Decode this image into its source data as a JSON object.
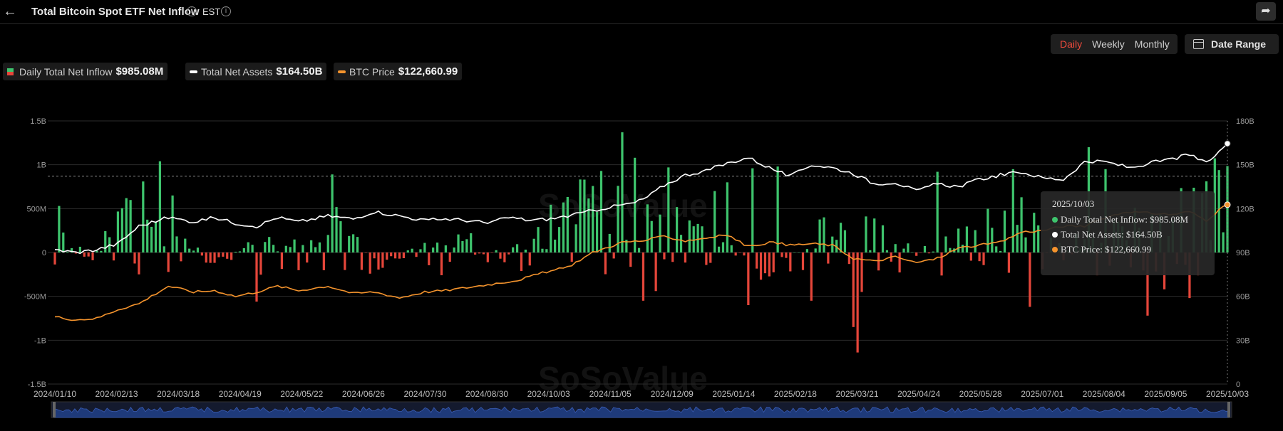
{
  "header": {
    "title": "Total Bitcoin Spot ETF Net Inflow",
    "timezone": "EST",
    "back_icon": "arrow-left-icon",
    "share_icon": "share-icon",
    "info_icon": "info-icon"
  },
  "period_tabs": [
    {
      "label": "Daily",
      "active": true
    },
    {
      "label": "Weekly",
      "active": false
    },
    {
      "label": "Monthly",
      "active": false
    }
  ],
  "date_range": {
    "label": "Date Range",
    "icon": "calendar-icon"
  },
  "legend": [
    {
      "label": "Daily Total Net Inflow",
      "value": "$985.08M",
      "swatch": "bar"
    },
    {
      "label": "Total Net Assets",
      "value": "$164.50B",
      "swatch": "#ffffff"
    },
    {
      "label": "BTC Price",
      "value": "$122,660.99",
      "swatch": "#f5942d"
    }
  ],
  "tooltip": {
    "date": "2025/10/03",
    "rows": [
      {
        "text": "Daily Total Net Inflow: $985.08M",
        "color": "#3ec46d"
      },
      {
        "text": "Total Net Assets: $164.50B",
        "color": "#ffffff"
      },
      {
        "text": "BTC Price: $122,660.99",
        "color": "#f5942d"
      }
    ]
  },
  "watermark": "SoSoValue",
  "colors": {
    "inflow_pos": "#3ec46d",
    "inflow_neg": "#e5463a",
    "net_assets": "#ffffff",
    "btc_price": "#f5942d",
    "active_tab": "#ef4a3c",
    "navigator": "#1e3a7a"
  },
  "chart_data": {
    "type": "bar",
    "x_ticks": [
      "2024/01/10",
      "2024/02/13",
      "2024/03/18",
      "2024/04/19",
      "2024/05/22",
      "2024/06/26",
      "2024/07/30",
      "2024/08/30",
      "2024/10/03",
      "2024/11/05",
      "2024/12/09",
      "2025/01/14",
      "2025/02/18",
      "2025/03/21",
      "2025/04/24",
      "2025/05/28",
      "2025/07/01",
      "2025/08/04",
      "2025/09/05",
      "2025/10/03"
    ],
    "left_axis": {
      "ticks": [
        "-1.5B",
        "-1B",
        "-500M",
        "0",
        "500M",
        "1B",
        "1.5B"
      ],
      "ylim": [
        -1.5,
        1.5
      ],
      "unit": "billion USD"
    },
    "right_axis": {
      "ticks": [
        "0",
        "30B",
        "60B",
        "90B",
        "120B",
        "150B",
        "180B"
      ],
      "ylim": [
        0,
        180
      ],
      "unit": "billion"
    },
    "reference_line": 0.87,
    "inflow_knots": [
      [
        0,
        0.5
      ],
      [
        9,
        -0.05
      ],
      [
        18,
        0.75
      ],
      [
        28,
        0.4
      ],
      [
        38,
        -0.15
      ],
      [
        48,
        0.2
      ],
      [
        58,
        0.35
      ],
      [
        68,
        0.4
      ],
      [
        78,
        -0.1
      ],
      [
        88,
        0.15
      ],
      [
        98,
        0.2
      ],
      [
        108,
        0.05
      ],
      [
        118,
        0.45
      ],
      [
        128,
        0.9
      ],
      [
        138,
        0.45
      ],
      [
        148,
        0.5
      ],
      [
        158,
        0.3
      ],
      [
        168,
        -0.25
      ],
      [
        178,
        0.1
      ],
      [
        188,
        0.75
      ],
      [
        198,
        0.2
      ],
      [
        208,
        0.1
      ],
      [
        218,
        0.5
      ],
      [
        228,
        0.6
      ],
      [
        238,
        0.15
      ],
      [
        248,
        0.2
      ],
      [
        258,
        0.45
      ],
      [
        268,
        0.6
      ],
      [
        279,
        0.98
      ]
    ],
    "inflow_spikes": [
      [
        17,
        0.62
      ],
      [
        25,
        1.04
      ],
      [
        28,
        0.65
      ],
      [
        48,
        -0.56
      ],
      [
        66,
        0.89
      ],
      [
        130,
        0.93
      ],
      [
        135,
        1.37
      ],
      [
        138,
        1.08
      ],
      [
        140,
        -0.55
      ],
      [
        143,
        -0.44
      ],
      [
        146,
        0.97
      ],
      [
        157,
        0.7
      ],
      [
        160,
        0.8
      ],
      [
        165,
        -0.6
      ],
      [
        166,
        0.96
      ],
      [
        172,
        0.98
      ],
      [
        180,
        -0.55
      ],
      [
        190,
        -0.85
      ],
      [
        191,
        -1.14
      ],
      [
        192,
        -0.45
      ],
      [
        210,
        0.92
      ],
      [
        228,
        0.95
      ],
      [
        232,
        -0.62
      ],
      [
        246,
        1.2
      ],
      [
        250,
        0.95
      ],
      [
        260,
        -0.72
      ],
      [
        264,
        -0.42
      ],
      [
        270,
        -0.52
      ],
      [
        279,
        0.985
      ]
    ],
    "net_assets_knots": [
      [
        0,
        92
      ],
      [
        5,
        90
      ],
      [
        10,
        92
      ],
      [
        15,
        96
      ],
      [
        20,
        108
      ],
      [
        27,
        114
      ],
      [
        33,
        111
      ],
      [
        38,
        114
      ],
      [
        43,
        110
      ],
      [
        48,
        108
      ],
      [
        53,
        114
      ],
      [
        58,
        111
      ],
      [
        65,
        115
      ],
      [
        71,
        113
      ],
      [
        76,
        118
      ],
      [
        82,
        115
      ],
      [
        88,
        112
      ],
      [
        93,
        113
      ],
      [
        98,
        112
      ],
      [
        103,
        110
      ],
      [
        108,
        114
      ],
      [
        113,
        112
      ],
      [
        118,
        113
      ],
      [
        124,
        116
      ],
      [
        130,
        120
      ],
      [
        138,
        124
      ],
      [
        141,
        128
      ],
      [
        145,
        136
      ],
      [
        150,
        143
      ],
      [
        155,
        146
      ],
      [
        160,
        151
      ],
      [
        165,
        155
      ],
      [
        170,
        148
      ],
      [
        175,
        142
      ],
      [
        180,
        150
      ],
      [
        185,
        148
      ],
      [
        190,
        144
      ],
      [
        195,
        137
      ],
      [
        200,
        138
      ],
      [
        205,
        132
      ],
      [
        210,
        137
      ],
      [
        215,
        135
      ],
      [
        220,
        140
      ],
      [
        225,
        143
      ],
      [
        230,
        145
      ],
      [
        235,
        141
      ],
      [
        240,
        140
      ],
      [
        245,
        152
      ],
      [
        250,
        152
      ],
      [
        256,
        148
      ],
      [
        262,
        152
      ],
      [
        266,
        154
      ],
      [
        270,
        157
      ],
      [
        274,
        151
      ],
      [
        277,
        159
      ],
      [
        279,
        164.5
      ]
    ],
    "btc_price_knots": [
      [
        0,
        46
      ],
      [
        5,
        44
      ],
      [
        10,
        45
      ],
      [
        15,
        51
      ],
      [
        20,
        55
      ],
      [
        27,
        67
      ],
      [
        33,
        63
      ],
      [
        38,
        64
      ],
      [
        43,
        60
      ],
      [
        48,
        63
      ],
      [
        53,
        67
      ],
      [
        58,
        64
      ],
      [
        65,
        67
      ],
      [
        71,
        62
      ],
      [
        76,
        63
      ],
      [
        82,
        59
      ],
      [
        88,
        63
      ],
      [
        93,
        64
      ],
      [
        98,
        66
      ],
      [
        103,
        68
      ],
      [
        110,
        71
      ],
      [
        116,
        76
      ],
      [
        122,
        80
      ],
      [
        128,
        90
      ],
      [
        135,
        97
      ],
      [
        140,
        98
      ],
      [
        145,
        101
      ],
      [
        150,
        98
      ],
      [
        155,
        100
      ],
      [
        160,
        102
      ],
      [
        165,
        94
      ],
      [
        170,
        97
      ],
      [
        175,
        95
      ],
      [
        180,
        96
      ],
      [
        185,
        95
      ],
      [
        190,
        86
      ],
      [
        195,
        84
      ],
      [
        200,
        87
      ],
      [
        205,
        83
      ],
      [
        210,
        86
      ],
      [
        215,
        93
      ],
      [
        220,
        95
      ],
      [
        225,
        97
      ],
      [
        230,
        104
      ],
      [
        235,
        105
      ],
      [
        240,
        108
      ],
      [
        245,
        108
      ],
      [
        250,
        114
      ],
      [
        255,
        118
      ],
      [
        260,
        117
      ],
      [
        266,
        116
      ],
      [
        270,
        118
      ],
      [
        274,
        112
      ],
      [
        277,
        119
      ],
      [
        279,
        122.66
      ]
    ],
    "n_points": 280
  }
}
